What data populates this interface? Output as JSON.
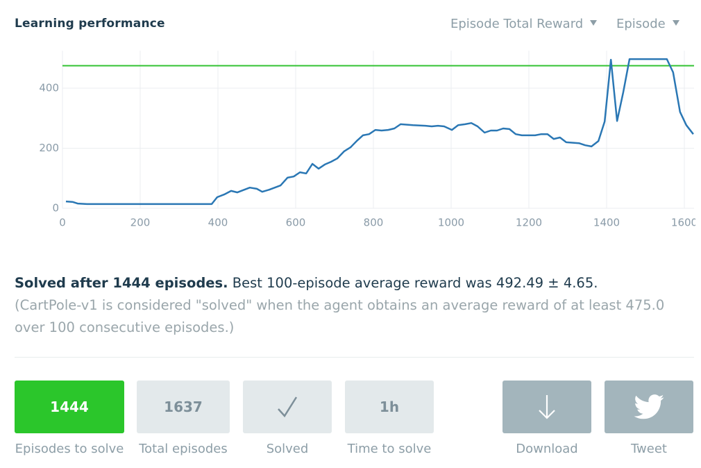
{
  "header": {
    "title": "Learning performance",
    "metric_dropdown": "Episode Total Reward",
    "axis_dropdown": "Episode"
  },
  "chart_data": {
    "type": "line",
    "x": [
      9,
      27,
      39,
      63,
      384,
      398,
      416,
      434,
      450,
      464,
      482,
      500,
      514,
      532,
      561,
      579,
      595,
      611,
      627,
      643,
      659,
      675,
      691,
      707,
      725,
      741,
      757,
      773,
      789,
      805,
      821,
      838,
      854,
      870,
      902,
      934,
      950,
      966,
      982,
      1002,
      1018,
      1036,
      1052,
      1068,
      1086,
      1102,
      1118,
      1134,
      1150,
      1166,
      1182,
      1216,
      1232,
      1248,
      1264,
      1280,
      1296,
      1329,
      1345,
      1361,
      1379,
      1395,
      1411,
      1427,
      1443,
      1459,
      1555,
      1571,
      1589,
      1605,
      1623
    ],
    "values": [
      23,
      21,
      16,
      14,
      14,
      37,
      46,
      58,
      53,
      60,
      69,
      65,
      55,
      62,
      76,
      102,
      106,
      120,
      116,
      148,
      132,
      146,
      155,
      166,
      190,
      203,
      224,
      243,
      247,
      261,
      259,
      261,
      266,
      280,
      277,
      275,
      273,
      275,
      273,
      261,
      277,
      280,
      284,
      273,
      252,
      259,
      259,
      266,
      264,
      247,
      243,
      243,
      247,
      247,
      231,
      236,
      220,
      217,
      210,
      206,
      224,
      289,
      495,
      291,
      388,
      497,
      497,
      453,
      321,
      277,
      247
    ],
    "color": "#2a77b4",
    "reference_line": 475,
    "reference_color": "#33c233",
    "xlim": [
      0,
      1625
    ],
    "ylim": [
      0,
      525
    ],
    "xticks": [
      0,
      200,
      400,
      600,
      800,
      1000,
      1200,
      1400,
      1600
    ],
    "yticks": [
      0,
      200,
      400
    ],
    "grid": true
  },
  "summary": {
    "headline": "Solved after 1444 episodes.",
    "detail": "Best 100-episode average reward was 492.49 ± 4.65.",
    "note": "(CartPole-v1 is considered \"solved\" when the agent obtains an average reward of at least 475.0 over 100 consecutive episodes.)"
  },
  "stats": [
    {
      "value": "1444",
      "label": "Episodes to solve"
    },
    {
      "value": "1637",
      "label": "Total episodes"
    },
    {
      "label": "Solved"
    },
    {
      "value": "1h",
      "label": "Time to solve"
    }
  ],
  "buttons": [
    {
      "label": "Download"
    },
    {
      "label": "Tweet"
    }
  ]
}
